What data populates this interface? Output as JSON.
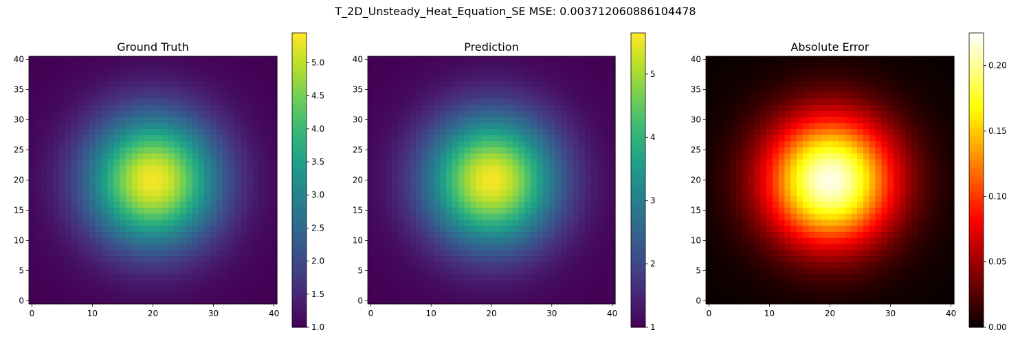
{
  "figure": {
    "suptitle": "T_2D_Unsteady_Heat_Equation_SE MSE: 0.003712060886104478"
  },
  "chart_data": [
    {
      "type": "heatmap",
      "title": "Ground Truth",
      "grid_size": 41,
      "x_range": [
        0,
        40
      ],
      "y_range": [
        0,
        40
      ],
      "x_ticks": [
        0,
        10,
        20,
        30,
        40
      ],
      "y_ticks": [
        0,
        5,
        10,
        15,
        20,
        25,
        30,
        35,
        40
      ],
      "origin": "lower",
      "peak": {
        "x": 20,
        "y": 20,
        "value": 5.4
      },
      "min_value": 1.0,
      "colormap": "viridis",
      "colorbar": {
        "range": [
          1.0,
          5.45
        ],
        "ticks": [
          1.0,
          1.5,
          2.0,
          2.5,
          3.0,
          3.5,
          4.0,
          4.5,
          5.0
        ],
        "tick_labels": [
          "1.0",
          "1.5",
          "2.0",
          "2.5",
          "3.0",
          "3.5",
          "4.0",
          "4.5",
          "5.0"
        ]
      }
    },
    {
      "type": "heatmap",
      "title": "Prediction",
      "grid_size": 41,
      "x_range": [
        0,
        40
      ],
      "y_range": [
        0,
        40
      ],
      "x_ticks": [
        0,
        10,
        20,
        30,
        40
      ],
      "y_ticks": [
        0,
        5,
        10,
        15,
        20,
        25,
        30,
        35,
        40
      ],
      "origin": "lower",
      "peak": {
        "x": 20,
        "y": 20,
        "value": 5.6
      },
      "min_value": 1.0,
      "colormap": "viridis",
      "colorbar": {
        "range": [
          1.0,
          5.65
        ],
        "ticks": [
          1,
          2,
          3,
          4,
          5
        ],
        "tick_labels": [
          "1",
          "2",
          "3",
          "4",
          "5"
        ]
      }
    },
    {
      "type": "heatmap",
      "title": "Absolute Error",
      "grid_size": 41,
      "x_range": [
        0,
        40
      ],
      "y_range": [
        0,
        40
      ],
      "x_ticks": [
        0,
        10,
        20,
        30,
        40
      ],
      "y_ticks": [
        0,
        5,
        10,
        15,
        20,
        25,
        30,
        35,
        40
      ],
      "origin": "lower",
      "peak": {
        "x": 20,
        "y": 20,
        "value": 0.22
      },
      "min_value": 0.0,
      "colormap": "hot",
      "colorbar": {
        "range": [
          0.0,
          0.225
        ],
        "ticks": [
          0.0,
          0.05,
          0.1,
          0.15,
          0.2
        ],
        "tick_labels": [
          "0.00",
          "0.05",
          "0.10",
          "0.15",
          "0.20"
        ]
      }
    }
  ]
}
